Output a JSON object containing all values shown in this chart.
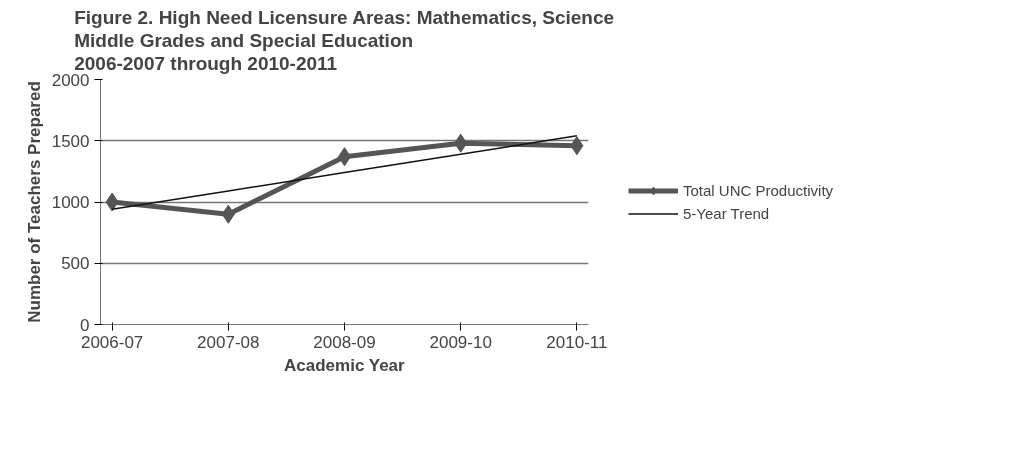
{
  "chart_data": {
    "type": "line",
    "title": "Figure 2. High Need Licensure Areas: Mathematics, Science\nMiddle Grades and Special Education\n2006-2007 through 2010-2011",
    "xlabel": "Academic Year",
    "ylabel": "Number of Teachers Prepared",
    "categories": [
      "2006-07",
      "2007-08",
      "2008-09",
      "2009-10",
      "2010-11"
    ],
    "series": [
      {
        "name": "Total UNC Productivity",
        "color": "#555555",
        "values": [
          1000,
          900,
          1370,
          1480,
          1460
        ],
        "marker": "diamond"
      },
      {
        "name": "5-Year Trend",
        "color": "#111111",
        "values": [
          940,
          1090,
          1240,
          1390,
          1540
        ],
        "marker": "none"
      }
    ],
    "ylim": [
      0,
      2000
    ],
    "yticks": [
      0,
      500,
      1000,
      1500,
      2000
    ],
    "grid": "y",
    "legend": "right"
  }
}
